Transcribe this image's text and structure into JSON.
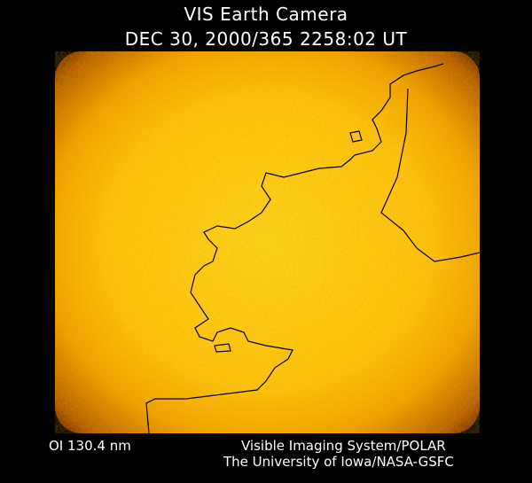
{
  "title": "VIS Earth Camera",
  "timestamp": "DEC 30, 2000/365 2258:02 UT",
  "wavelength": "OI  130.4 nm",
  "credit_line1": "Visible Imaging System/POLAR",
  "credit_line2": "The University of Iowa/NASA-GSFC",
  "colors": {
    "background": "#000000",
    "glow_center": "#ffd21a",
    "glow_edge": "#c86a00",
    "coastline": "#000000"
  }
}
